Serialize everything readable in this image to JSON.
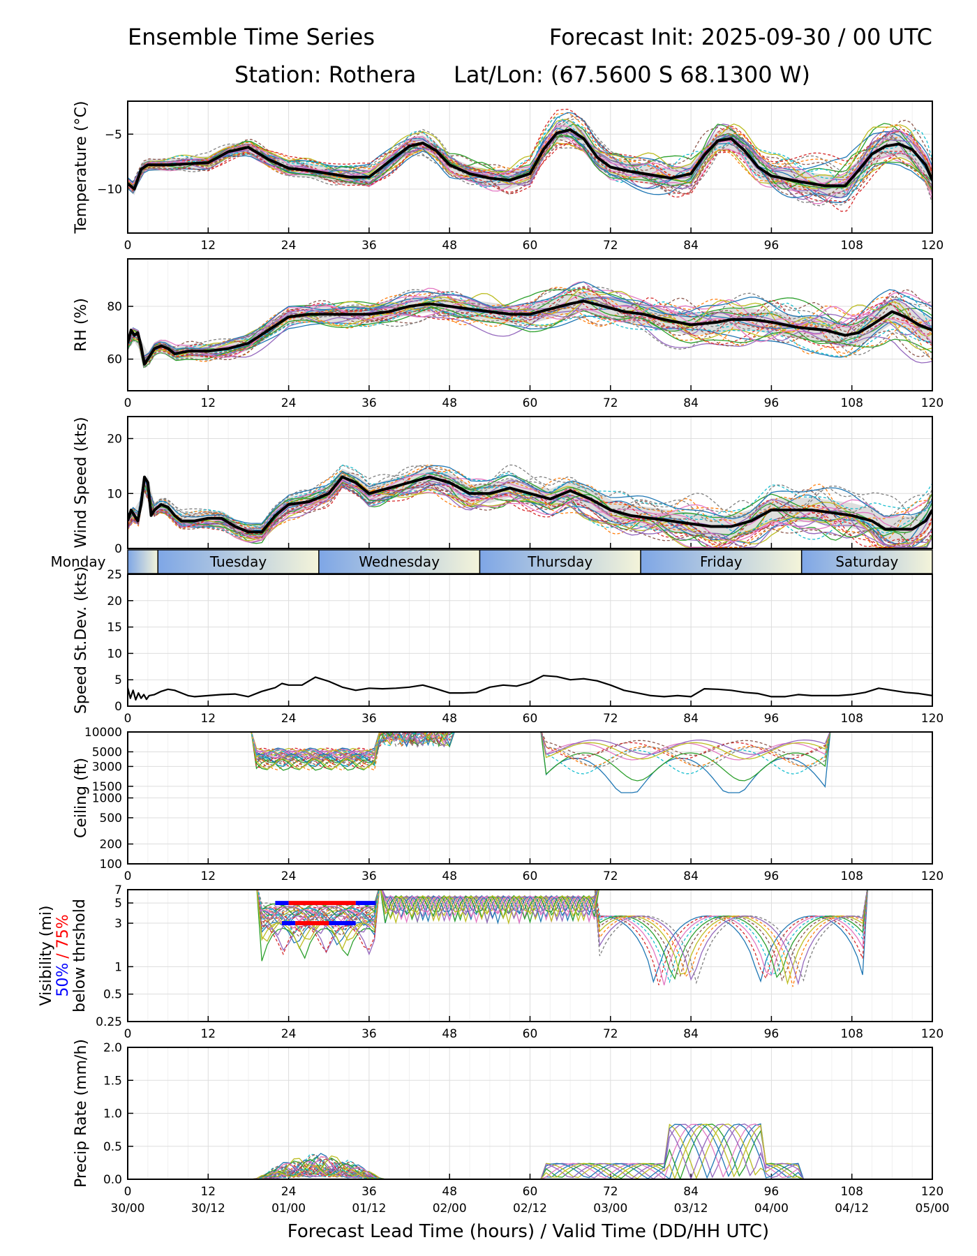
{
  "header": {
    "title_left": "Ensemble Time Series",
    "title_right": "Forecast Init: 2025-09-30 / 00 UTC",
    "station": "Station: Rothera",
    "latlon": "Lat/Lon: (67.5600 S 68.1300 W)"
  },
  "chart_data": {
    "type": "line",
    "x_label": "Forecast Lead Time (hours) / Valid Time (DD/HH UTC)",
    "x_range": [
      0,
      120
    ],
    "x_ticks": [
      0,
      12,
      24,
      36,
      48,
      60,
      72,
      84,
      96,
      108,
      120
    ],
    "valid_time_labels": [
      "30/00",
      "30/12",
      "01/00",
      "01/12",
      "02/00",
      "02/12",
      "03/00",
      "03/12",
      "04/00",
      "04/12",
      "05/00"
    ],
    "ensemble_colors": [
      "#1f77b4",
      "#ff7f0e",
      "#2ca02c",
      "#d62728",
      "#9467bd",
      "#8c564b",
      "#e377c2",
      "#7f7f7f",
      "#bcbd22",
      "#17becf"
    ],
    "mean_color": "#000000",
    "spread_color": "#d3d3d3",
    "day_band": {
      "days": [
        "Monday",
        "Tuesday",
        "Wednesday",
        "Thursday",
        "Friday",
        "Saturday"
      ],
      "day_boundaries_h": [
        4.5,
        28.5,
        52.5,
        76.5,
        100.5
      ],
      "gradient_colors": [
        "#7ea6e6",
        "#f4f4d9"
      ]
    },
    "panels": [
      {
        "id": "temperature",
        "ylabel": "Temperature (°C)",
        "ylim": [
          -14,
          -2
        ],
        "yticks": [
          -5,
          -10
        ],
        "ytick_labels": [
          "−5",
          "−10"
        ],
        "mean": [
          [
            0,
            -9.5
          ],
          [
            1,
            -10
          ],
          [
            2,
            -8.2
          ],
          [
            3,
            -7.8
          ],
          [
            6,
            -7.8
          ],
          [
            9,
            -7.7
          ],
          [
            12,
            -7.6
          ],
          [
            15,
            -6.6
          ],
          [
            18,
            -6.2
          ],
          [
            21,
            -7.3
          ],
          [
            24,
            -8.1
          ],
          [
            27,
            -8.3
          ],
          [
            30,
            -8.6
          ],
          [
            33,
            -8.9
          ],
          [
            36,
            -8.9
          ],
          [
            39,
            -7.5
          ],
          [
            42,
            -6.1
          ],
          [
            44,
            -5.8
          ],
          [
            46,
            -6.5
          ],
          [
            48,
            -7.8
          ],
          [
            51,
            -8.6
          ],
          [
            54,
            -9.0
          ],
          [
            57,
            -9.2
          ],
          [
            60,
            -8.6
          ],
          [
            62,
            -6.4
          ],
          [
            64,
            -4.9
          ],
          [
            66,
            -4.6
          ],
          [
            68,
            -5.4
          ],
          [
            70,
            -7.1
          ],
          [
            72,
            -8.0
          ],
          [
            75,
            -8.4
          ],
          [
            78,
            -8.7
          ],
          [
            81,
            -9.0
          ],
          [
            84,
            -8.6
          ],
          [
            86,
            -6.9
          ],
          [
            88,
            -5.6
          ],
          [
            90,
            -5.4
          ],
          [
            92,
            -6.5
          ],
          [
            94,
            -8.0
          ],
          [
            96,
            -8.8
          ],
          [
            100,
            -9.3
          ],
          [
            104,
            -9.7
          ],
          [
            107,
            -9.7
          ],
          [
            109,
            -8.3
          ],
          [
            111,
            -6.8
          ],
          [
            113,
            -6.1
          ],
          [
            115,
            -5.9
          ],
          [
            117,
            -6.4
          ],
          [
            119,
            -7.8
          ],
          [
            120,
            -9.2
          ]
        ],
        "spread": 0.9
      },
      {
        "id": "rh",
        "ylabel": "RH (%)",
        "ylim": [
          48,
          98
        ],
        "yticks": [
          80,
          60
        ],
        "ytick_labels": [
          "80",
          "60"
        ],
        "mean": [
          [
            0,
            66
          ],
          [
            0.5,
            71
          ],
          [
            1,
            69
          ],
          [
            1.5,
            70
          ],
          [
            2,
            65
          ],
          [
            2.5,
            58
          ],
          [
            3,
            60
          ],
          [
            4,
            64
          ],
          [
            5,
            65
          ],
          [
            6,
            64
          ],
          [
            7,
            62
          ],
          [
            9,
            63
          ],
          [
            12,
            63
          ],
          [
            15,
            64
          ],
          [
            18,
            66
          ],
          [
            21,
            71
          ],
          [
            24,
            76
          ],
          [
            27,
            77
          ],
          [
            30,
            77
          ],
          [
            33,
            77
          ],
          [
            36,
            77
          ],
          [
            39,
            78
          ],
          [
            42,
            80
          ],
          [
            45,
            81
          ],
          [
            48,
            80
          ],
          [
            51,
            79
          ],
          [
            54,
            78
          ],
          [
            57,
            77
          ],
          [
            60,
            77
          ],
          [
            63,
            79
          ],
          [
            66,
            81
          ],
          [
            68,
            82
          ],
          [
            71,
            80
          ],
          [
            74,
            78
          ],
          [
            77,
            77
          ],
          [
            80,
            75
          ],
          [
            84,
            73
          ],
          [
            88,
            74
          ],
          [
            90,
            75
          ],
          [
            93,
            75
          ],
          [
            96,
            74
          ],
          [
            100,
            72
          ],
          [
            104,
            71
          ],
          [
            107,
            69
          ],
          [
            109,
            70
          ],
          [
            111,
            73
          ],
          [
            114,
            78
          ],
          [
            116,
            76
          ],
          [
            118,
            73
          ],
          [
            120,
            71
          ]
        ],
        "spread": 4
      },
      {
        "id": "wind",
        "ylabel": "Wind Speed (kts)",
        "ylim": [
          0,
          24
        ],
        "yticks": [
          20,
          10,
          0
        ],
        "ytick_labels": [
          "20",
          "10",
          "0"
        ],
        "mean": [
          [
            0,
            5
          ],
          [
            0.5,
            7
          ],
          [
            1,
            6
          ],
          [
            1.5,
            5
          ],
          [
            2,
            8
          ],
          [
            2.5,
            13
          ],
          [
            3,
            12
          ],
          [
            3.5,
            6
          ],
          [
            4,
            7
          ],
          [
            5,
            8
          ],
          [
            6,
            7.5
          ],
          [
            7,
            6
          ],
          [
            8,
            5
          ],
          [
            10,
            5
          ],
          [
            12,
            5.5
          ],
          [
            14,
            5.5
          ],
          [
            16,
            4
          ],
          [
            18,
            3
          ],
          [
            20,
            3
          ],
          [
            22,
            6
          ],
          [
            24,
            8
          ],
          [
            27,
            8.5
          ],
          [
            30,
            10
          ],
          [
            32,
            13
          ],
          [
            34,
            12
          ],
          [
            36,
            10
          ],
          [
            39,
            11
          ],
          [
            42,
            12
          ],
          [
            45,
            13
          ],
          [
            48,
            12
          ],
          [
            51,
            10
          ],
          [
            54,
            10
          ],
          [
            57,
            11
          ],
          [
            60,
            10
          ],
          [
            63,
            9
          ],
          [
            66,
            10.5
          ],
          [
            69,
            9
          ],
          [
            72,
            7
          ],
          [
            75,
            6
          ],
          [
            78,
            5.5
          ],
          [
            81,
            5
          ],
          [
            84,
            4.5
          ],
          [
            87,
            4
          ],
          [
            90,
            4
          ],
          [
            93,
            5
          ],
          [
            96,
            7
          ],
          [
            99,
            7
          ],
          [
            102,
            7
          ],
          [
            105,
            6.5
          ],
          [
            108,
            6
          ],
          [
            111,
            5
          ],
          [
            113,
            3.5
          ],
          [
            115,
            3.5
          ],
          [
            117,
            3.5
          ],
          [
            119,
            5
          ],
          [
            120,
            7
          ]
        ],
        "spread": 2
      },
      {
        "id": "stdev",
        "ylabel": "Speed St.Dev. (kts)",
        "ylim": [
          0,
          25
        ],
        "yticks": [
          25,
          20,
          15,
          10,
          5,
          0
        ],
        "ytick_labels": [
          "25",
          "20",
          "15",
          "10",
          "5",
          "0"
        ],
        "mean": [
          [
            0,
            3.5
          ],
          [
            0.4,
            1.5
          ],
          [
            0.8,
            3
          ],
          [
            1.2,
            1.2
          ],
          [
            1.6,
            2.5
          ],
          [
            2,
            1.5
          ],
          [
            2.4,
            2.2
          ],
          [
            2.8,
            1.3
          ],
          [
            3.2,
            2
          ],
          [
            4,
            2.2
          ],
          [
            5,
            2.8
          ],
          [
            6,
            3.2
          ],
          [
            7,
            3.0
          ],
          [
            8,
            2.5
          ],
          [
            9,
            2
          ],
          [
            10,
            1.8
          ],
          [
            12,
            2
          ],
          [
            14,
            2.2
          ],
          [
            16,
            2.3
          ],
          [
            18,
            1.8
          ],
          [
            20,
            2.8
          ],
          [
            22,
            3.5
          ],
          [
            23,
            4.3
          ],
          [
            24,
            4.0
          ],
          [
            26,
            4.0
          ],
          [
            28,
            5.5
          ],
          [
            30,
            4.7
          ],
          [
            32,
            3.6
          ],
          [
            34,
            3.0
          ],
          [
            36,
            3.4
          ],
          [
            38,
            3.3
          ],
          [
            40,
            3.4
          ],
          [
            42,
            3.6
          ],
          [
            44,
            4.0
          ],
          [
            46,
            3.3
          ],
          [
            48,
            2.5
          ],
          [
            50,
            2.5
          ],
          [
            52,
            2.6
          ],
          [
            54,
            3.6
          ],
          [
            56,
            4.0
          ],
          [
            58,
            3.8
          ],
          [
            60,
            4.5
          ],
          [
            62,
            5.8
          ],
          [
            64,
            5.6
          ],
          [
            66,
            5.0
          ],
          [
            68,
            5.2
          ],
          [
            70,
            4.8
          ],
          [
            72,
            4.0
          ],
          [
            74,
            3.0
          ],
          [
            76,
            2.5
          ],
          [
            78,
            2.0
          ],
          [
            80,
            1.8
          ],
          [
            82,
            2.0
          ],
          [
            84,
            1.8
          ],
          [
            86,
            3.3
          ],
          [
            88,
            3.2
          ],
          [
            90,
            3.0
          ],
          [
            92,
            2.6
          ],
          [
            94,
            2.4
          ],
          [
            96,
            1.8
          ],
          [
            98,
            1.8
          ],
          [
            100,
            2.2
          ],
          [
            102,
            2.0
          ],
          [
            104,
            2.0
          ],
          [
            106,
            2.0
          ],
          [
            108,
            2.2
          ],
          [
            110,
            2.6
          ],
          [
            112,
            3.4
          ],
          [
            114,
            3.0
          ],
          [
            116,
            2.6
          ],
          [
            118,
            2.4
          ],
          [
            120,
            2.0
          ]
        ],
        "spread": 0
      },
      {
        "id": "ceiling",
        "ylabel": "Ceiling (ft)",
        "scale": "log",
        "ylim": [
          100,
          10000
        ],
        "yticks": [
          10000,
          5000,
          3000,
          1500,
          1000,
          500,
          200,
          100
        ],
        "ytick_labels": [
          "10000",
          "5000",
          "3000",
          "1500",
          "1000",
          "500",
          "200",
          "100"
        ]
      },
      {
        "id": "visibility",
        "ylabel_lines": [
          "Visibility (mi)",
          "50%",
          "/ 75%",
          "below thrshold"
        ],
        "scale": "log",
        "ylim": [
          0.25,
          7
        ],
        "yticks": [
          7,
          5,
          3,
          1,
          0.5,
          0.25
        ],
        "ytick_labels": [
          "7",
          "5",
          "3",
          "1",
          "0.5",
          "0.25"
        ],
        "threshold_bars": [
          {
            "threshold_mi": 5,
            "blue_50pct": [
              [
                22,
                24
              ],
              [
                34,
                37
              ]
            ],
            "red_75pct": [
              [
                24,
                34
              ]
            ]
          },
          {
            "threshold_mi": 3,
            "blue_50pct": [
              [
                23,
                25
              ],
              [
                30,
                34
              ]
            ],
            "red_75pct": [
              [
                25,
                30
              ]
            ]
          }
        ]
      },
      {
        "id": "precip",
        "ylabel": "Precip Rate (mm/h)",
        "ylim": [
          0,
          2
        ],
        "yticks": [
          2.0,
          1.5,
          1.0,
          0.5,
          0.0
        ],
        "ytick_labels": [
          "2.0",
          "1.5",
          "1.0",
          "0.5",
          "0.0"
        ]
      }
    ]
  }
}
